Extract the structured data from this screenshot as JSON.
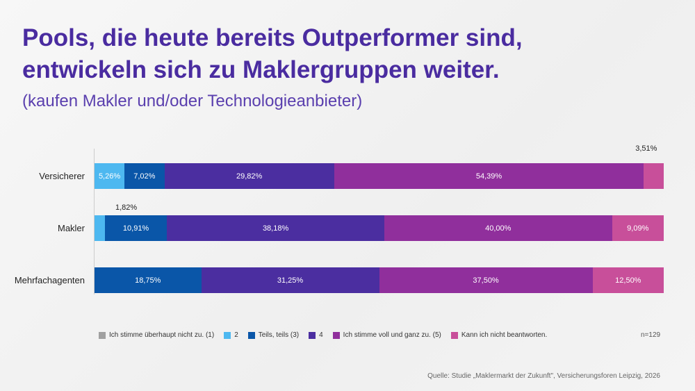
{
  "header": {
    "title_line1": "Pools, die heute bereits Outperformer sind,",
    "title_line2": "entwickeln sich zu Maklergruppen weiter.",
    "subtitle": "(kaufen Makler und/oder Technologieanbieter)"
  },
  "chart_data": {
    "type": "bar",
    "orientation": "horizontal-stacked-100",
    "categories": [
      "Versicherer",
      "Makler",
      "Mehrfachagenten"
    ],
    "series": [
      {
        "name": "Ich stimme überhaupt nicht zu. (1)",
        "color": "#a0a0a0",
        "values": [
          0,
          0,
          0
        ]
      },
      {
        "name": "2",
        "color": "#4db8f0",
        "values": [
          5.26,
          1.82,
          0
        ]
      },
      {
        "name": "Teils, teils (3)",
        "color": "#0a56a8",
        "values": [
          7.02,
          10.91,
          18.75
        ]
      },
      {
        "name": "4",
        "color": "#4b2ea0",
        "values": [
          29.82,
          38.18,
          31.25
        ]
      },
      {
        "name": "Ich stimme voll und ganz zu. (5)",
        "color": "#902f9c",
        "values": [
          54.39,
          40.0,
          37.5
        ]
      },
      {
        "name": "Kann ich nicht beantworten.",
        "color": "#c84f9a",
        "values": [
          3.51,
          9.09,
          12.5
        ]
      }
    ],
    "labels": [
      [
        "",
        "5,26%",
        "7,02%",
        "29,82%",
        "54,39%",
        "3,51%"
      ],
      [
        "",
        "1,82%",
        "10,91%",
        "38,18%",
        "40,00%",
        "9,09%"
      ],
      [
        "",
        "",
        "18,75%",
        "31,25%",
        "37,50%",
        "12,50%"
      ]
    ],
    "xlim": [
      0,
      100
    ],
    "legend": "bottom"
  },
  "footer": {
    "n": "n=129",
    "source": "Quelle: Studie „Maklermarkt der Zukunft\", Versicherungsforen Leipzig, 2026"
  }
}
